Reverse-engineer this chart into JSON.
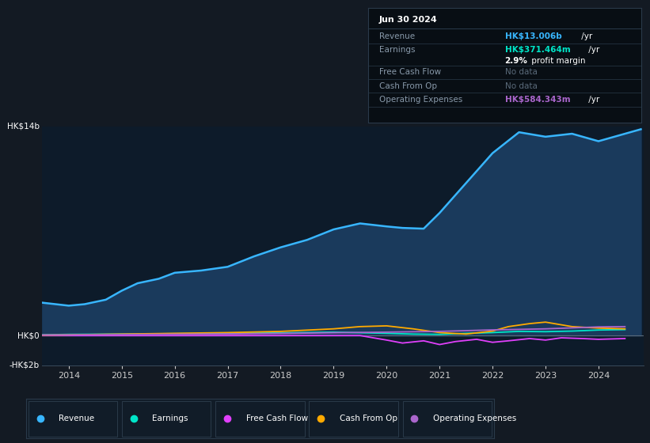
{
  "background_color": "#131a23",
  "plot_bg_color": "#0d1b2a",
  "chart_bg_dark": "#0a1628",
  "ylim": [
    -2000000000,
    14000000000
  ],
  "xlim_start": 2013.5,
  "xlim_end": 2024.85,
  "x_ticks": [
    2014,
    2015,
    2016,
    2017,
    2018,
    2019,
    2020,
    2021,
    2022,
    2023,
    2024
  ],
  "grid_color": "#1e2d3d",
  "zero_line_color": "#5a6a7a",
  "revenue_color": "#38b6ff",
  "revenue_fill_color": "#1a3a5c",
  "earnings_color": "#00e5c8",
  "free_cash_flow_color": "#e040fb",
  "cash_from_op_color": "#ffaa00",
  "operating_exp_color": "#aa66cc",
  "tooltip_bg": "#080e14",
  "tooltip_border": "#2a3a4a",
  "legend_bg": "#111c28",
  "legend_border": "#2a3a4a",
  "revenue_data": {
    "years": [
      2013.5,
      2014.0,
      2014.3,
      2014.7,
      2015.0,
      2015.3,
      2015.7,
      2016.0,
      2016.5,
      2017.0,
      2017.5,
      2018.0,
      2018.5,
      2019.0,
      2019.5,
      2020.0,
      2020.3,
      2020.7,
      2021.0,
      2021.5,
      2022.0,
      2022.5,
      2023.0,
      2023.5,
      2024.0,
      2024.5,
      2024.8
    ],
    "values": [
      2200000000,
      2000000000,
      2100000000,
      2400000000,
      3000000000,
      3500000000,
      3800000000,
      4200000000,
      4350000000,
      4600000000,
      5300000000,
      5900000000,
      6400000000,
      7100000000,
      7500000000,
      7300000000,
      7200000000,
      7150000000,
      8200000000,
      10200000000,
      12200000000,
      13600000000,
      13300000000,
      13500000000,
      13000000000,
      13500000000,
      13800000000
    ]
  },
  "earnings_data": {
    "years": [
      2013.5,
      2014.0,
      2015.0,
      2016.0,
      2017.0,
      2018.0,
      2019.0,
      2020.0,
      2020.5,
      2021.0,
      2021.5,
      2022.0,
      2022.5,
      2023.0,
      2023.5,
      2024.0,
      2024.5
    ],
    "values": [
      50000000,
      80000000,
      100000000,
      130000000,
      150000000,
      180000000,
      230000000,
      150000000,
      100000000,
      80000000,
      150000000,
      200000000,
      280000000,
      260000000,
      300000000,
      371000000,
      400000000
    ]
  },
  "free_cash_flow_data": {
    "years": [
      2013.5,
      2019.5,
      2020.0,
      2020.3,
      2020.7,
      2021.0,
      2021.3,
      2021.7,
      2022.0,
      2022.3,
      2022.7,
      2023.0,
      2023.3,
      2023.7,
      2024.0,
      2024.5
    ],
    "values": [
      0,
      0,
      -300000000,
      -500000000,
      -350000000,
      -600000000,
      -400000000,
      -250000000,
      -450000000,
      -350000000,
      -200000000,
      -300000000,
      -150000000,
      -200000000,
      -250000000,
      -200000000
    ]
  },
  "cash_from_op_data": {
    "years": [
      2013.5,
      2014.0,
      2015.0,
      2016.0,
      2017.0,
      2018.0,
      2019.0,
      2019.5,
      2020.0,
      2020.5,
      2021.0,
      2021.5,
      2022.0,
      2022.3,
      2022.7,
      2023.0,
      2023.5,
      2024.0,
      2024.5
    ],
    "values": [
      30000000,
      50000000,
      100000000,
      150000000,
      200000000,
      280000000,
      450000000,
      600000000,
      650000000,
      450000000,
      200000000,
      100000000,
      300000000,
      600000000,
      800000000,
      900000000,
      600000000,
      500000000,
      450000000
    ]
  },
  "operating_exp_data": {
    "years": [
      2013.5,
      2014.0,
      2015.0,
      2016.0,
      2017.0,
      2018.0,
      2019.0,
      2020.0,
      2021.0,
      2022.0,
      2023.0,
      2024.0,
      2024.5
    ],
    "values": [
      40000000,
      50000000,
      70000000,
      90000000,
      110000000,
      140000000,
      190000000,
      230000000,
      280000000,
      380000000,
      450000000,
      580000000,
      600000000
    ]
  },
  "tooltip": {
    "date": "Jun 30 2024",
    "revenue_label": "Revenue",
    "revenue_value": "HK$13.006b",
    "revenue_unit": " /yr",
    "earnings_label": "Earnings",
    "earnings_value": "HK$371.464m",
    "earnings_unit": " /yr",
    "profit_margin_bold": "2.9%",
    "profit_margin_rest": " profit margin",
    "fcf_label": "Free Cash Flow",
    "fcf_value": "No data",
    "cashop_label": "Cash From Op",
    "cashop_value": "No data",
    "opex_label": "Operating Expenses",
    "opex_value": "HK$584.343m",
    "opex_unit": " /yr"
  },
  "legend_items": [
    {
      "label": "Revenue",
      "color": "#38b6ff"
    },
    {
      "label": "Earnings",
      "color": "#00e5c8"
    },
    {
      "label": "Free Cash Flow",
      "color": "#e040fb"
    },
    {
      "label": "Cash From Op",
      "color": "#ffaa00"
    },
    {
      "label": "Operating Expenses",
      "color": "#aa66cc"
    }
  ]
}
